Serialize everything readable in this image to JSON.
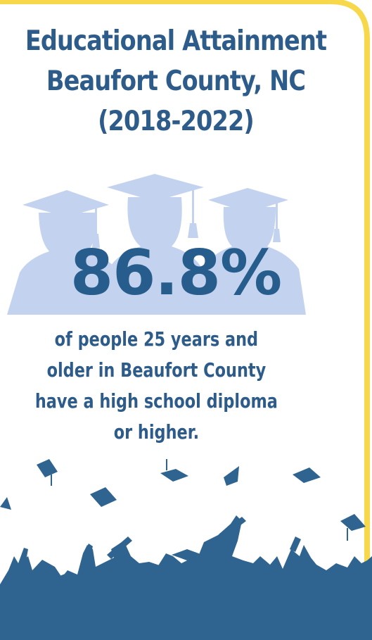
{
  "title": "Educational Attainment Beaufort County, NC (2018-2022)",
  "stat": {
    "value": "86.8%",
    "description": "of people 25 years and older in Beaufort County have a high school diploma or higher."
  },
  "colors": {
    "title_text": "#2d5c8a",
    "stat_text": "#275d8c",
    "silhouette_light": "#c3d3ef",
    "silhouette_dark": "#2f6390",
    "frame_border": "#f6d84a"
  },
  "icons": [
    "graduate-silhouettes-icon",
    "celebrating-crowd-icon",
    "graduation-cap-icon"
  ]
}
